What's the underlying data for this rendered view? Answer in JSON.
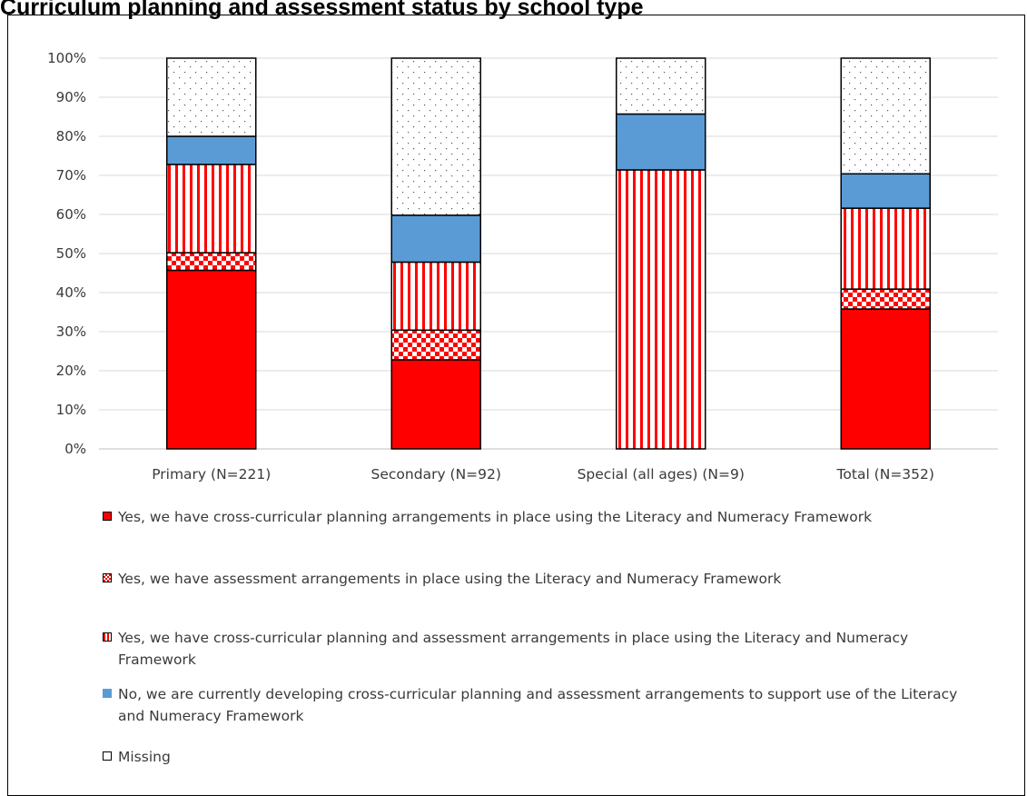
{
  "title": "Curriculum planning and assessment status by school type",
  "colors": {
    "red": "#ff0000",
    "blue": "#5b9bd5",
    "grid": "#d9d9d9",
    "axis": "#3a3a3a"
  },
  "chart_data": {
    "type": "bar",
    "stacked": true,
    "categories": [
      "Primary (N=221)",
      "Secondary (N=92)",
      "Special (all ages) (N=9)",
      "Total (N=352)"
    ],
    "ylim": [
      0,
      100
    ],
    "yticks": [
      "0%",
      "10%",
      "20%",
      "30%",
      "40%",
      "50%",
      "60%",
      "70%",
      "80%",
      "90%",
      "100%"
    ],
    "grid": true,
    "legend_position": "bottom",
    "series": [
      {
        "name": "Yes, we have cross-curricular planning arrangements in place using the Literacy and  Numeracy Framework",
        "pattern": "solid-red",
        "values": [
          45.7,
          22.8,
          0,
          35.8
        ]
      },
      {
        "name": "Yes, we have assessment arrangements in place using the Literacy and Numeracy Framework",
        "pattern": "checker-red",
        "values": [
          4.5,
          7.6,
          0,
          5.1
        ]
      },
      {
        "name": "Yes, we have cross-curricular planning and assessment arrangements in place using the Literacy and Numeracy Framework",
        "pattern": "stripes-red",
        "values": [
          22.6,
          17.4,
          71.4,
          20.7
        ]
      },
      {
        "name": "No, we are currently developing  cross-curricular planning and assessment arrangements to support use of the Literacy and Numeracy Framework",
        "pattern": "solid-blue",
        "values": [
          7.2,
          12.0,
          14.3,
          8.8
        ]
      },
      {
        "name": "Missing",
        "pattern": "dots",
        "values": [
          20.0,
          40.2,
          14.3,
          29.6
        ]
      }
    ]
  }
}
